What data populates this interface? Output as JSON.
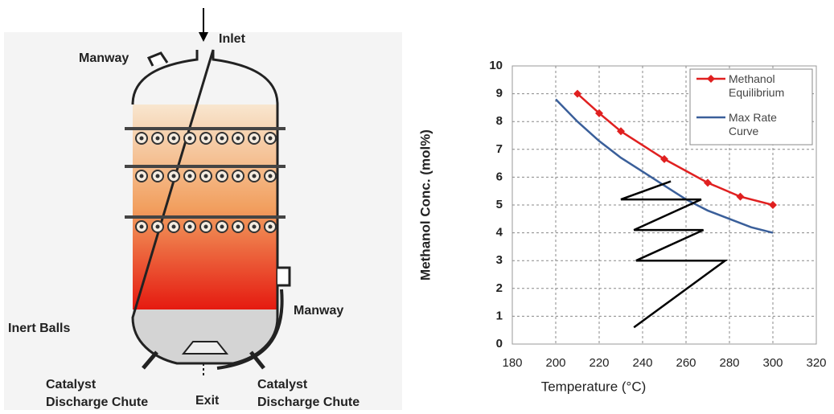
{
  "diagram": {
    "labels": {
      "inlet": "Inlet",
      "manway_top": "Manway",
      "manway_side": "Manway",
      "inert_balls": "Inert Balls",
      "exit": "Exit",
      "chute_left": [
        "Catalyst",
        "Discharge Chute"
      ],
      "chute_right": [
        "Catalyst",
        "Discharge Chute"
      ]
    }
  },
  "chart_data": {
    "type": "line",
    "x_label": "Temperature (°C)",
    "y_label": "Methanol Conc. (mol%)",
    "xlim": [
      180,
      320
    ],
    "xticks": [
      180,
      200,
      220,
      240,
      260,
      280,
      300,
      320
    ],
    "ylim": [
      0,
      10
    ],
    "yticks": [
      0,
      1,
      2,
      3,
      4,
      5,
      6,
      7,
      8,
      9,
      10
    ],
    "grid": true,
    "legend": "top-right",
    "series": [
      {
        "name": "Methanol Equilibrium",
        "color": "#e02020",
        "markers": true,
        "x": [
          210,
          220,
          230,
          250,
          270,
          285,
          300
        ],
        "values": [
          9.0,
          8.3,
          7.65,
          6.65,
          5.8,
          5.3,
          5.0
        ]
      },
      {
        "name": "Max Rate Curve",
        "color": "#3a5f9a",
        "markers": false,
        "x": [
          200,
          210,
          220,
          230,
          240,
          250,
          260,
          270,
          280,
          290,
          300
        ],
        "values": [
          8.8,
          8.0,
          7.3,
          6.7,
          6.2,
          5.7,
          5.2,
          4.8,
          4.5,
          4.2,
          4.0
        ]
      },
      {
        "color": "#000000",
        "markers": false,
        "x": [
          236,
          278,
          237,
          268,
          236,
          267,
          230,
          253
        ],
        "values": [
          0.6,
          3.0,
          3.0,
          4.1,
          4.1,
          5.2,
          5.2,
          5.85
        ]
      }
    ]
  }
}
